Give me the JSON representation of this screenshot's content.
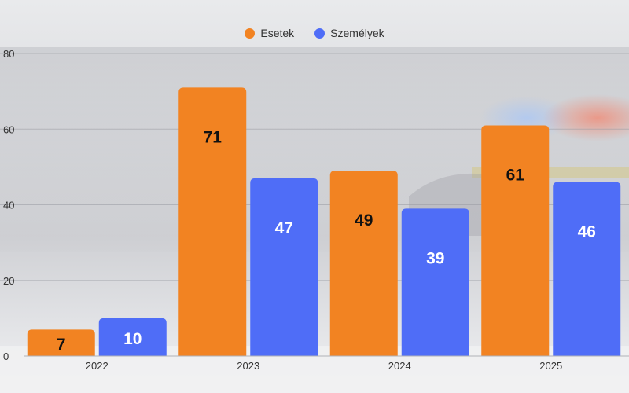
{
  "chart_data": {
    "type": "bar",
    "categories": [
      "2022",
      "2023",
      "2024",
      "2025"
    ],
    "series": [
      {
        "name": "Esetek",
        "values": [
          7,
          71,
          49,
          61
        ],
        "color": "#f28322"
      },
      {
        "name": "Személyek",
        "values": [
          10,
          47,
          39,
          46
        ],
        "color": "#4f6df7"
      }
    ],
    "ylim": [
      0,
      80
    ],
    "yticks": [
      0,
      20,
      40,
      60,
      80
    ],
    "grid": true,
    "legend_position": "top-center",
    "data_labels": true
  }
}
